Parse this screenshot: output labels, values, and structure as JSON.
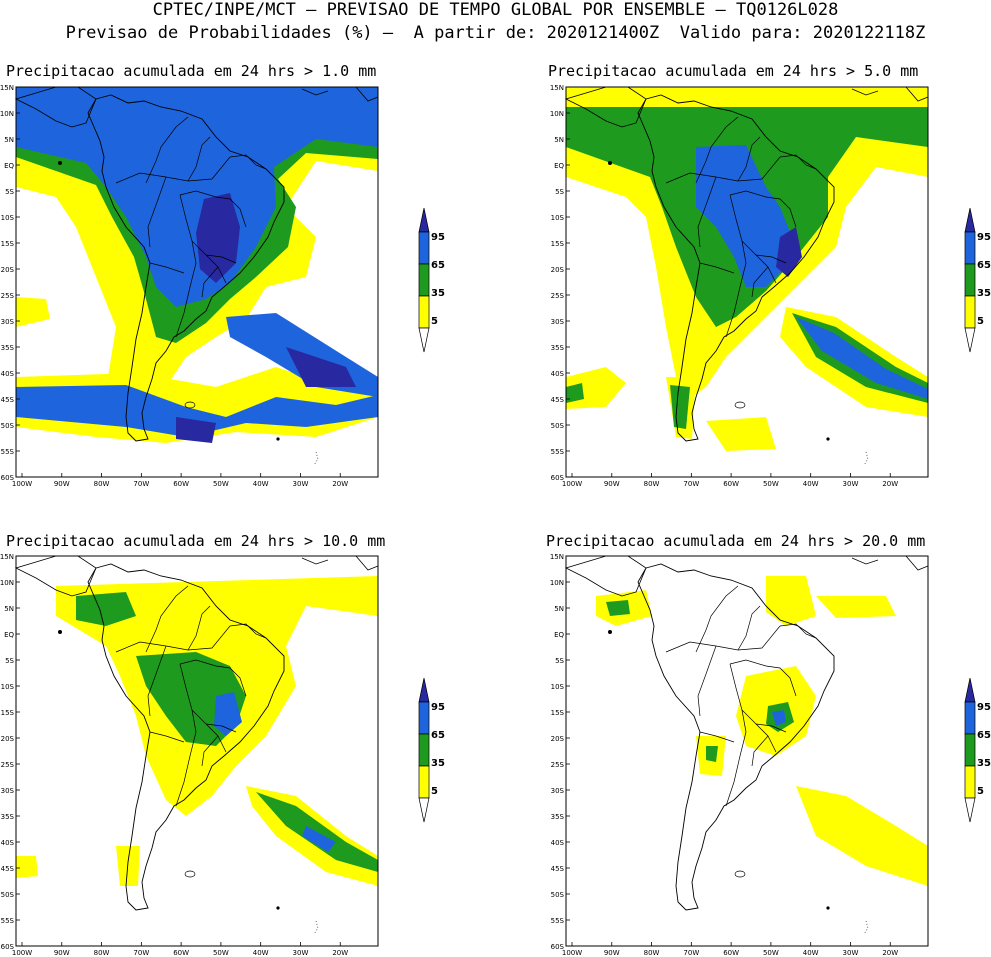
{
  "header": {
    "line1": "CPTEC/INPE/MCT – PREVISAO DE TEMPO GLOBAL POR ENSEMBLE – TQ0126L028",
    "line2": "Previsao de Probabilidades (%) –  A partir de: 2020121400Z  Valido para: 2020122118Z"
  },
  "colors": {
    "c5": "#ffff00",
    "c35": "#1e9a1e",
    "c65": "#1e64dc",
    "c95": "#2828a0",
    "land": "#000000"
  },
  "axes": {
    "lat_labels": [
      "15N",
      "10N",
      "5N",
      "EQ",
      "5S",
      "10S",
      "15S",
      "20S",
      "25S",
      "30S",
      "35S",
      "40S",
      "45S",
      "50S",
      "55S",
      "60S"
    ],
    "lon_labels": [
      "100W",
      "90W",
      "80W",
      "70W",
      "60W",
      "50W",
      "40W",
      "30W",
      "20W"
    ]
  },
  "legend": {
    "labels": [
      "95",
      "65",
      "35",
      "5"
    ]
  },
  "panels": [
    {
      "title": "Precipitacao acumulada em 24 hrs > 1.0 mm"
    },
    {
      "title": "Precipitacao acumulada em 24 hrs > 5.0 mm"
    },
    {
      "title": "Precipitacao acumulada em 24 hrs > 10.0 mm"
    },
    {
      "title": "Precipitacao acumulada em 24 hrs > 20.0 mm"
    }
  ]
}
